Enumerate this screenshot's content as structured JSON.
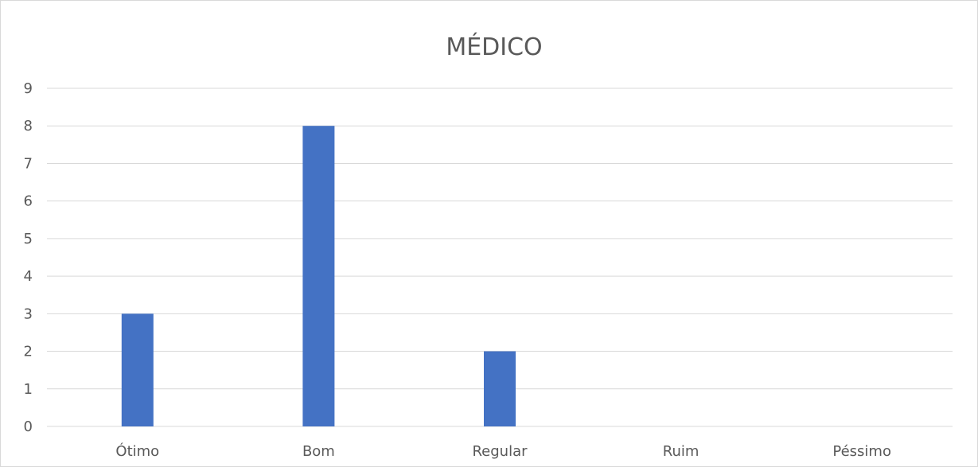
{
  "chart_data": {
    "type": "bar",
    "title": "MÉDICO",
    "categories": [
      "Ótimo",
      "Bom",
      "Regular",
      "Ruim",
      "Péssimo"
    ],
    "values": [
      3,
      8,
      2,
      0,
      0
    ],
    "xlabel": "",
    "ylabel": "",
    "ylim": [
      0,
      9
    ],
    "yticks": [
      0,
      1,
      2,
      3,
      4,
      5,
      6,
      7,
      8,
      9
    ],
    "grid": true,
    "legend": "none",
    "bar_color": "#4472C4",
    "grid_color": "#d9d9d9"
  }
}
